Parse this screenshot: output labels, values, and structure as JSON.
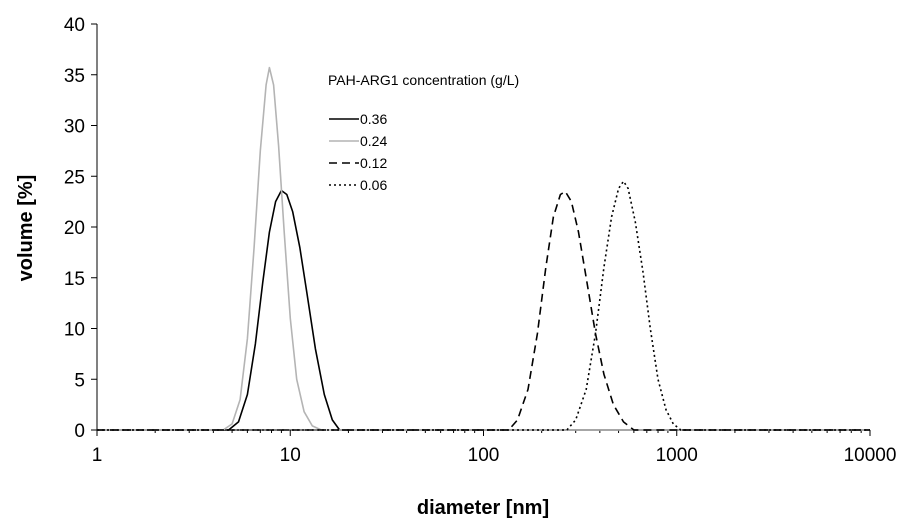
{
  "chart_data": {
    "type": "line",
    "xlabel": "diameter [nm]",
    "ylabel": "volume [%]",
    "x_scale": "log",
    "xlim": [
      1,
      10000
    ],
    "ylim": [
      0,
      40
    ],
    "x_ticks": [
      {
        "value": 1,
        "label": "1"
      },
      {
        "value": 10,
        "label": "10"
      },
      {
        "value": 100,
        "label": "100"
      },
      {
        "value": 1000,
        "label": "1000"
      },
      {
        "value": 10000,
        "label": "10000"
      }
    ],
    "y_ticks": [
      0,
      5,
      10,
      15,
      20,
      25,
      30,
      35,
      40
    ],
    "grid": false,
    "legend": {
      "title": "PAH-ARG1 concentration (g/L)",
      "position": "top-center"
    },
    "series": [
      {
        "name": "0.36",
        "color": "#000000",
        "dash": "solid",
        "x": [
          1,
          4.8,
          5.4,
          6.0,
          6.6,
          7.2,
          7.8,
          8.4,
          9.0,
          9.6,
          10.3,
          11.2,
          12.2,
          13.5,
          15.0,
          16.5,
          18.0,
          10000
        ],
        "y": [
          0,
          0,
          0.8,
          3.5,
          8.5,
          14.5,
          19.5,
          22.5,
          23.6,
          23.2,
          21.5,
          18.0,
          13.5,
          8.0,
          3.5,
          1.0,
          0,
          0
        ]
      },
      {
        "name": "0.24",
        "color": "#b4b4b4",
        "dash": "solid",
        "x": [
          1,
          4.5,
          5.0,
          5.5,
          6.0,
          6.5,
          7.0,
          7.5,
          7.8,
          8.2,
          8.7,
          9.3,
          10.0,
          10.8,
          11.8,
          13.0,
          14.5,
          10000
        ],
        "y": [
          0,
          0,
          0.6,
          3.0,
          9.0,
          18.0,
          27.5,
          34.0,
          35.7,
          34.0,
          28.0,
          19.5,
          11.0,
          5.0,
          1.8,
          0.4,
          0,
          0
        ]
      },
      {
        "name": "0.12",
        "color": "#000000",
        "dash": "dashed",
        "x": [
          1,
          135,
          150,
          170,
          190,
          210,
          230,
          250,
          265,
          285,
          310,
          340,
          380,
          420,
          470,
          530,
          600,
          10000
        ],
        "y": [
          0,
          0,
          1.0,
          4.0,
          9.5,
          16.0,
          21.0,
          23.2,
          23.5,
          22.5,
          19.5,
          15.0,
          9.5,
          5.5,
          2.5,
          0.8,
          0,
          0
        ]
      },
      {
        "name": "0.06",
        "color": "#000000",
        "dash": "dotted",
        "x": [
          1,
          270,
          300,
          340,
          380,
          420,
          460,
          500,
          530,
          560,
          610,
          670,
          730,
          800,
          880,
          960,
          1050,
          10000
        ],
        "y": [
          0,
          0,
          1.0,
          4.0,
          9.5,
          16.0,
          21.0,
          23.8,
          24.5,
          23.8,
          20.5,
          15.5,
          10.0,
          5.0,
          2.0,
          0.6,
          0,
          0
        ]
      }
    ]
  }
}
